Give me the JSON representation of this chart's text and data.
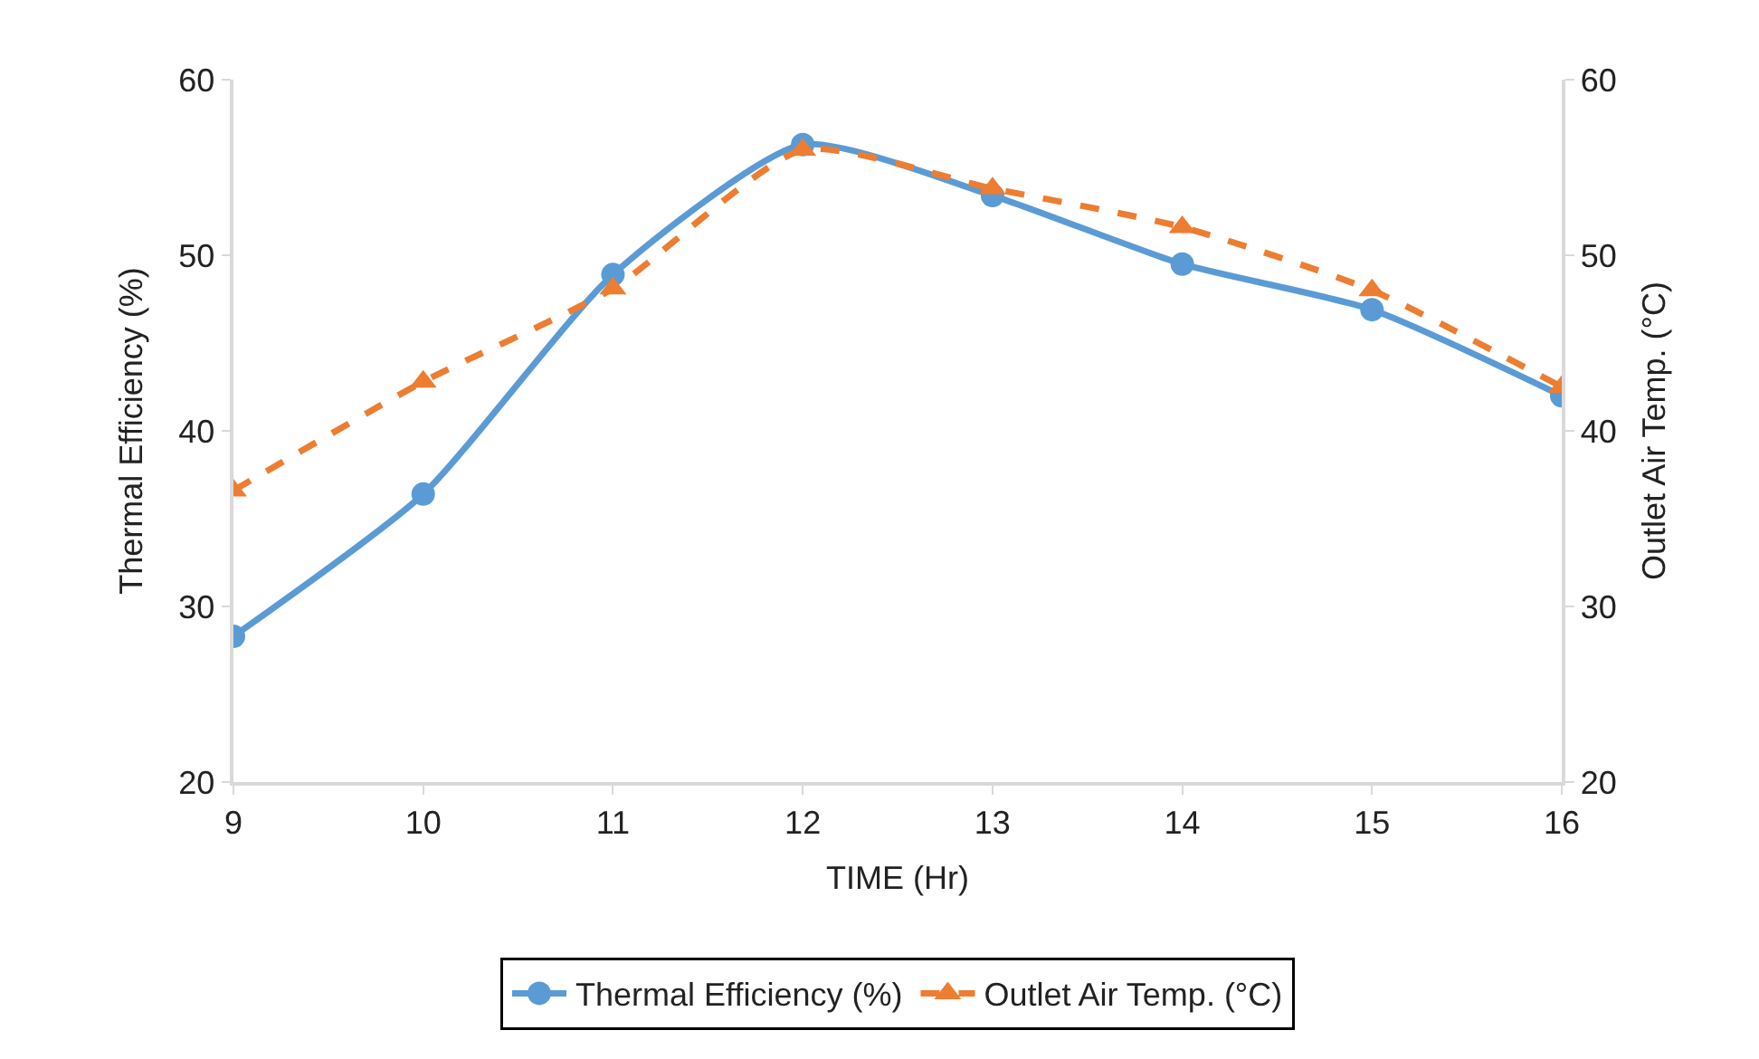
{
  "chart_data": {
    "type": "line",
    "xlabel": "TIME (Hr)",
    "ylabel": "Thermal Efficiency (%)",
    "y2label": "Outlet Air Temp. (°C)",
    "x": [
      9,
      10,
      11,
      12,
      13,
      14,
      15,
      16
    ],
    "series": [
      {
        "name": "Thermal Efficiency (%)",
        "color": "#5b9bd5",
        "values": [
          28.3,
          36.4,
          48.9,
          56.3,
          53.4,
          49.5,
          46.9,
          42.0
        ],
        "marker": "circle",
        "line_style": "solid"
      },
      {
        "name": "Outlet Air Temp. (°C)",
        "color": "#ed7d31",
        "values": [
          36.6,
          42.8,
          48.1,
          56.0,
          53.8,
          51.6,
          48.0,
          42.5
        ],
        "axis": "y2",
        "marker": "triangle",
        "line_style": "dashed"
      }
    ],
    "xlim": [
      9,
      16
    ],
    "xticks": [
      9,
      10,
      11,
      12,
      13,
      14,
      15,
      16
    ],
    "ylim": [
      20,
      60
    ],
    "yticks": [
      20,
      30,
      40,
      50,
      60
    ],
    "y2lim": [
      20,
      60
    ],
    "y2ticks": [
      20,
      30,
      40,
      50,
      60
    ],
    "legend": "bottom"
  }
}
